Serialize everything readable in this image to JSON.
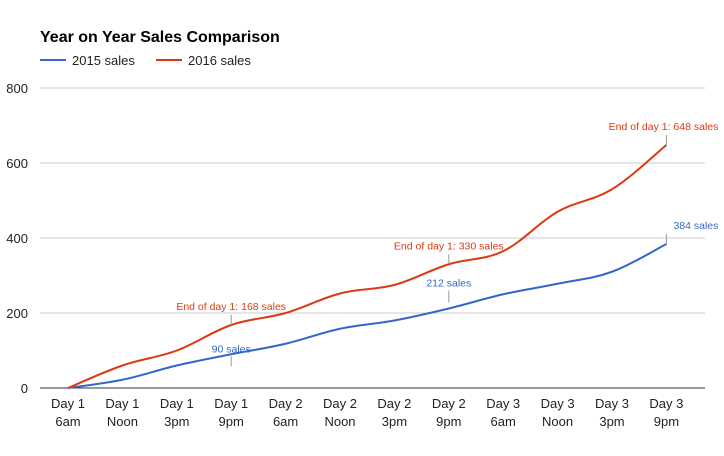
{
  "chart_data": {
    "type": "line",
    "title": "Year on Year Sales Comparison",
    "xlabel": "",
    "ylabel": "",
    "ylim": [
      0,
      800
    ],
    "yticks": [
      "0",
      "200",
      "400",
      "600",
      "800"
    ],
    "grid": true,
    "legend_position": "top-left",
    "categories": [
      [
        "Day 1",
        "6am"
      ],
      [
        "Day 1",
        "Noon"
      ],
      [
        "Day 1",
        "3pm"
      ],
      [
        "Day 1",
        "9pm"
      ],
      [
        "Day 2",
        "6am"
      ],
      [
        "Day 2",
        "Noon"
      ],
      [
        "Day 2",
        "3pm"
      ],
      [
        "Day 2",
        "9pm"
      ],
      [
        "Day 3",
        "6am"
      ],
      [
        "Day 3",
        "Noon"
      ],
      [
        "Day 3",
        "3pm"
      ],
      [
        "Day 3",
        "9pm"
      ]
    ],
    "series": [
      {
        "name": "2015 sales",
        "color": "#3366cc",
        "values": [
          0,
          22,
          60,
          90,
          118,
          158,
          180,
          212,
          250,
          278,
          310,
          384
        ],
        "annotations": [
          {
            "index": 3,
            "text": "90 sales"
          },
          {
            "index": 7,
            "text": "212 sales"
          },
          {
            "index": 11,
            "text": "384 sales"
          }
        ]
      },
      {
        "name": "2016 sales",
        "color": "#dc3912",
        "values": [
          0,
          60,
          100,
          168,
          200,
          252,
          275,
          330,
          365,
          470,
          530,
          648
        ],
        "annotations": [
          {
            "index": 3,
            "text": "End of day 1: 168 sales"
          },
          {
            "index": 7,
            "text": "End of day 1: 330 sales"
          },
          {
            "index": 11,
            "text": "End of day 1: 648 sales"
          }
        ]
      }
    ]
  }
}
